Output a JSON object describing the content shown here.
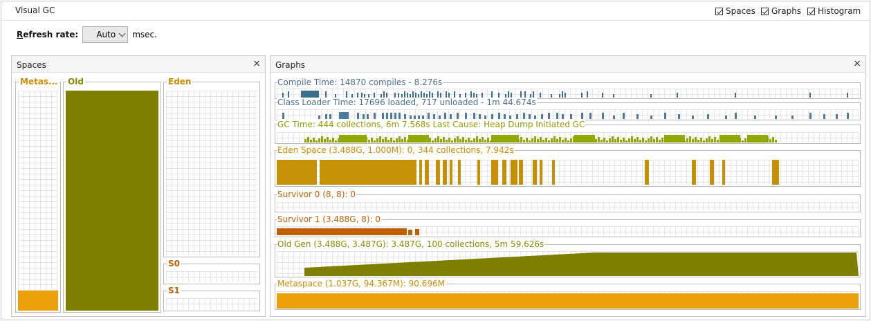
{
  "window": {
    "title": "Visual GC"
  },
  "toggles": [
    {
      "label": "Spaces",
      "checked": true
    },
    {
      "label": "Graphs",
      "checked": true
    },
    {
      "label": "Histogram",
      "checked": true
    }
  ],
  "refresh": {
    "label_prefix": "R",
    "label_rest": "efresh rate:",
    "value": "Auto",
    "unit": "msec."
  },
  "spaces_panel": {
    "title": "Spaces",
    "close": "×",
    "metaspace_label": "Metas...",
    "old_label": "Old",
    "eden_label": "Eden",
    "s0_label": "S0",
    "s1_label": "S1",
    "metaspace_fill": 0.09,
    "old_fill": 1.0,
    "eden_fill": 0.0,
    "s0_fill": 0.0,
    "s1_fill": 0.0
  },
  "graphs_panel": {
    "title": "Graphs",
    "close": "×",
    "graphs": [
      {
        "label": "Compile Time: 14870 compiles - 8.276s"
      },
      {
        "label": "Class Loader Time: 17696 loaded, 717 unloaded - 1m 44.674s"
      },
      {
        "label": "GC Time: 444 collections, 6m 7.568s  Last Cause: Heap Dump Initiated GC"
      },
      {
        "label": "Eden Space (3.488G, 1.000M): 0, 344 collections, 7.942s"
      },
      {
        "label": "Survivor 0 (8, 8): 0"
      },
      {
        "label": "Survivor 1 (3.488G, 8): 0"
      },
      {
        "label": "Old Gen (3.488G, 3.487G): 3.487G, 100 collections, 5m 59.626s"
      },
      {
        "label": "Metaspace (1.037G, 94.367M): 90.696M"
      }
    ]
  },
  "colors": {
    "compile": "#3e6e8e",
    "classloader": "#4a7b9d",
    "gc": "#90a800",
    "eden": "#c59006",
    "survivor": "#c06000",
    "old": "#7e7e00",
    "metaspace": "#eba00c",
    "label_blue": "#4a7090",
    "label_orange": "#d08a00",
    "label_gc": "#8aa000"
  }
}
